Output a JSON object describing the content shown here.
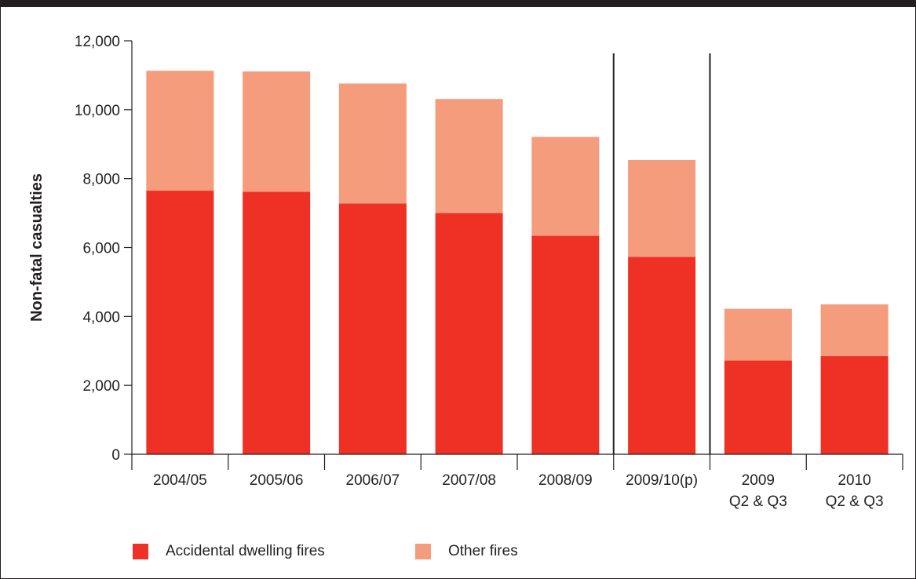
{
  "chart_data": {
    "type": "bar",
    "stacked": true,
    "categories": [
      [
        "2004/05"
      ],
      [
        "2005/06"
      ],
      [
        "2006/07"
      ],
      [
        "2007/08"
      ],
      [
        "2008/09"
      ],
      [
        "2009/10(p)"
      ],
      [
        "2009",
        "Q2 & Q3"
      ],
      [
        "2010",
        "Q2 & Q3"
      ]
    ],
    "series": [
      {
        "name": "Accidental dwelling fires",
        "color": "#ee3124",
        "values": [
          7650,
          7620,
          7280,
          7000,
          6340,
          5730,
          2720,
          2850
        ]
      },
      {
        "name": "Other fires",
        "color": "#f59c7c",
        "values": [
          3480,
          3490,
          3480,
          3310,
          2870,
          2810,
          1500,
          1500
        ]
      }
    ],
    "ylabel": "Non-fatal casualties",
    "ylim": [
      0,
      12000
    ],
    "yticks": [
      "0",
      "2,000",
      "4,000",
      "6,000",
      "8,000",
      "10,000",
      "12,000"
    ],
    "separators_after_category": [
      4,
      5
    ],
    "legend_position": "bottom-left",
    "grid": false
  }
}
